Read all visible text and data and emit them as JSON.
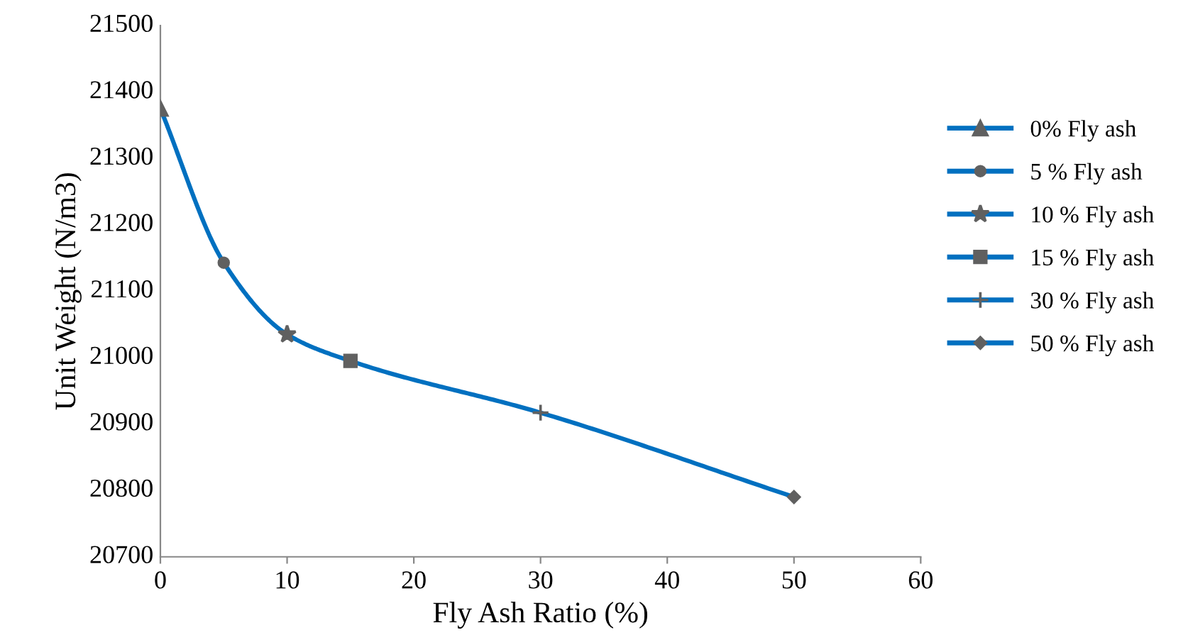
{
  "chart_data": {
    "type": "line",
    "xlabel": "Fly Ash Ratio (%)",
    "ylabel": "Unit Weight (N/m3)",
    "xlim": [
      0,
      60
    ],
    "xticks": [
      0,
      10,
      20,
      30,
      40,
      50,
      60
    ],
    "ylim": [
      20700,
      21500
    ],
    "yticks": [
      20700,
      20800,
      20900,
      21000,
      21100,
      21200,
      21300,
      21400,
      21500
    ],
    "grid": false,
    "legend": "right",
    "series": [
      {
        "x": [
          0,
          5,
          10,
          15,
          30,
          50
        ],
        "values": [
          21375,
          21143,
          21035,
          20995,
          20917,
          20790
        ],
        "color": "#0070c0",
        "marker": "none"
      },
      {
        "name": "0% Fly ash",
        "x": [
          0
        ],
        "values": [
          21375
        ],
        "color": "#606060",
        "marker": "triangle"
      },
      {
        "name": "5 % Fly ash",
        "x": [
          5
        ],
        "values": [
          21143
        ],
        "color": "#606060",
        "marker": "circle"
      },
      {
        "name": "10 % Fly ash",
        "x": [
          10
        ],
        "values": [
          21035
        ],
        "color": "#606060",
        "marker": "star"
      },
      {
        "name": "15 % Fly ash",
        "x": [
          15
        ],
        "values": [
          20995
        ],
        "color": "#606060",
        "marker": "square"
      },
      {
        "name": "30 % Fly ash",
        "x": [
          30
        ],
        "values": [
          20917
        ],
        "color": "#606060",
        "marker": "cross"
      },
      {
        "name": "50 % Fly ash",
        "x": [
          50
        ],
        "values": [
          20790
        ],
        "color": "#606060",
        "marker": "diamond"
      }
    ]
  }
}
